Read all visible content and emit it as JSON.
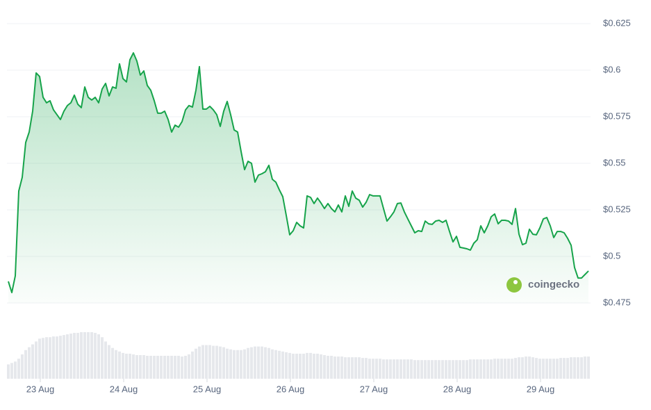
{
  "chart_data": {
    "type": "line",
    "watermark": "coingecko",
    "xlim": [
      22.6,
      29.6
    ],
    "xticks": [
      {
        "value": 23,
        "label": "23 Aug"
      },
      {
        "value": 24,
        "label": "24 Aug"
      },
      {
        "value": 25,
        "label": "25 Aug"
      },
      {
        "value": 26,
        "label": "26 Aug"
      },
      {
        "value": 27,
        "label": "27 Aug"
      },
      {
        "value": 28,
        "label": "28 Aug"
      },
      {
        "value": 29,
        "label": "29 Aug"
      }
    ],
    "ylim": [
      0.475,
      0.625
    ],
    "yticks": [
      {
        "value": 0.475,
        "label": "$0.475"
      },
      {
        "value": 0.5,
        "label": "$0.5"
      },
      {
        "value": 0.525,
        "label": "$0.525"
      },
      {
        "value": 0.55,
        "label": "$0.55"
      },
      {
        "value": 0.575,
        "label": "$0.575"
      },
      {
        "value": 0.6,
        "label": "$0.6"
      },
      {
        "value": 0.625,
        "label": "$0.625"
      }
    ],
    "grid": true,
    "x": [
      22.617,
      22.658,
      22.7,
      22.742,
      22.783,
      22.825,
      22.867,
      22.908,
      22.95,
      22.992,
      23.033,
      23.075,
      23.117,
      23.158,
      23.2,
      23.242,
      23.283,
      23.325,
      23.367,
      23.408,
      23.45,
      23.492,
      23.533,
      23.575,
      23.617,
      23.658,
      23.7,
      23.742,
      23.783,
      23.825,
      23.867,
      23.908,
      23.95,
      23.992,
      24.033,
      24.075,
      24.117,
      24.158,
      24.2,
      24.242,
      24.283,
      24.325,
      24.367,
      24.408,
      24.45,
      24.492,
      24.533,
      24.575,
      24.617,
      24.658,
      24.7,
      24.742,
      24.783,
      24.825,
      24.867,
      24.908,
      24.95,
      24.992,
      25.033,
      25.075,
      25.117,
      25.158,
      25.2,
      25.242,
      25.283,
      25.325,
      25.367,
      25.408,
      25.45,
      25.492,
      25.533,
      25.575,
      25.617,
      25.658,
      25.7,
      25.742,
      25.783,
      25.825,
      25.867,
      25.908,
      25.95,
      25.992,
      26.033,
      26.075,
      26.117,
      26.158,
      26.2,
      26.242,
      26.283,
      26.325,
      26.367,
      26.408,
      26.45,
      26.492,
      26.533,
      26.575,
      26.617,
      26.658,
      26.7,
      26.742,
      26.783,
      26.825,
      26.867,
      26.908,
      26.95,
      26.992,
      27.033,
      27.075,
      27.117,
      27.158,
      27.2,
      27.242,
      27.283,
      27.325,
      27.367,
      27.408,
      27.45,
      27.492,
      27.533,
      27.575,
      27.617,
      27.658,
      27.7,
      27.742,
      27.783,
      27.825,
      27.867,
      27.908,
      27.95,
      27.992,
      28.033,
      28.075,
      28.117,
      28.158,
      28.2,
      28.242,
      28.283,
      28.325,
      28.367,
      28.408,
      28.45,
      28.492,
      28.533,
      28.575,
      28.617,
      28.658,
      28.7,
      28.742,
      28.783,
      28.825,
      28.867,
      28.908,
      28.95,
      28.992,
      29.033,
      29.075,
      29.117,
      29.158,
      29.2,
      29.242,
      29.283,
      29.325,
      29.367,
      29.408,
      29.45,
      29.492,
      29.533,
      29.575
    ],
    "series": [
      {
        "name": "price",
        "color": "#16a34a",
        "values": [
          0.4866,
          0.4806,
          0.4896,
          0.5351,
          0.5425,
          0.5612,
          0.5668,
          0.578,
          0.5985,
          0.5966,
          0.5854,
          0.5825,
          0.5836,
          0.5787,
          0.5761,
          0.5735,
          0.578,
          0.581,
          0.5825,
          0.5866,
          0.5817,
          0.5799,
          0.591,
          0.5854,
          0.584,
          0.5854,
          0.5825,
          0.5899,
          0.5929,
          0.5862,
          0.591,
          0.5903,
          0.6034,
          0.5955,
          0.5937,
          0.6056,
          0.6093,
          0.6049,
          0.5974,
          0.5996,
          0.5918,
          0.5892,
          0.5836,
          0.5769,
          0.5769,
          0.578,
          0.5735,
          0.5668,
          0.5705,
          0.5694,
          0.5724,
          0.5787,
          0.581,
          0.5802,
          0.5892,
          0.6019,
          0.5791,
          0.5791,
          0.5806,
          0.5787,
          0.5761,
          0.5698,
          0.578,
          0.5832,
          0.5761,
          0.5679,
          0.5668,
          0.5563,
          0.5466,
          0.5511,
          0.55,
          0.5399,
          0.5437,
          0.5444,
          0.5455,
          0.5489,
          0.5414,
          0.5399,
          0.5358,
          0.5321,
          0.522,
          0.5116,
          0.5138,
          0.5183,
          0.5164,
          0.5153,
          0.5325,
          0.5317,
          0.5284,
          0.5313,
          0.5287,
          0.5257,
          0.5284,
          0.5257,
          0.5239,
          0.5276,
          0.5239,
          0.5325,
          0.5269,
          0.5351,
          0.5313,
          0.5302,
          0.5265,
          0.5291,
          0.5332,
          0.5325,
          0.5325,
          0.5325,
          0.5257,
          0.519,
          0.5213,
          0.5239,
          0.5284,
          0.5287,
          0.5239,
          0.5201,
          0.5164,
          0.5127,
          0.5138,
          0.5134,
          0.519,
          0.5175,
          0.5172,
          0.519,
          0.5194,
          0.5183,
          0.5194,
          0.5134,
          0.5078,
          0.5108,
          0.5049,
          0.5045,
          0.5041,
          0.5034,
          0.5071,
          0.509,
          0.5164,
          0.5127,
          0.5164,
          0.5213,
          0.5228,
          0.5175,
          0.5194,
          0.5194,
          0.519,
          0.5172,
          0.5257,
          0.5119,
          0.5063,
          0.5071,
          0.5146,
          0.5119,
          0.5116,
          0.5153,
          0.5201,
          0.5209,
          0.5164,
          0.5101,
          0.5134,
          0.5134,
          0.5127,
          0.5097,
          0.506,
          0.494,
          0.4884,
          0.4884,
          0.4903,
          0.4922
        ]
      },
      {
        "name": "volume",
        "color": "#e6e8ec",
        "values": [
          20,
          22,
          24,
          28,
          34,
          40,
          44,
          48,
          52,
          56,
          57,
          58,
          58,
          59,
          59,
          60,
          61,
          62,
          63,
          64,
          64,
          65,
          65,
          65,
          65,
          64,
          62,
          58,
          52,
          47,
          43,
          40,
          38,
          36,
          35,
          35,
          34,
          33,
          33,
          33,
          32,
          32,
          32,
          32,
          32,
          32,
          32,
          32,
          32,
          32,
          31,
          32,
          34,
          38,
          42,
          45,
          47,
          47,
          47,
          46,
          46,
          45,
          44,
          42,
          41,
          40,
          40,
          40,
          41,
          43,
          44,
          45,
          45,
          45,
          44,
          43,
          41,
          40,
          39,
          38,
          37,
          36,
          35,
          35,
          35,
          35,
          36,
          36,
          35,
          35,
          34,
          33,
          32,
          32,
          31,
          31,
          31,
          30,
          30,
          30,
          30,
          30,
          29,
          29,
          28,
          28,
          28,
          28,
          27,
          27,
          27,
          27,
          27,
          27,
          27,
          27,
          27,
          26,
          26,
          26,
          26,
          26,
          26,
          26,
          26,
          26,
          26,
          26,
          26,
          26,
          26,
          26,
          26,
          27,
          27,
          27,
          27,
          27,
          27,
          27,
          28,
          28,
          28,
          28,
          28,
          28,
          29,
          30,
          30,
          31,
          31,
          30,
          29,
          28,
          28,
          28,
          28,
          28,
          28,
          29,
          29,
          29,
          30,
          30,
          30,
          30,
          31,
          31
        ]
      }
    ]
  }
}
